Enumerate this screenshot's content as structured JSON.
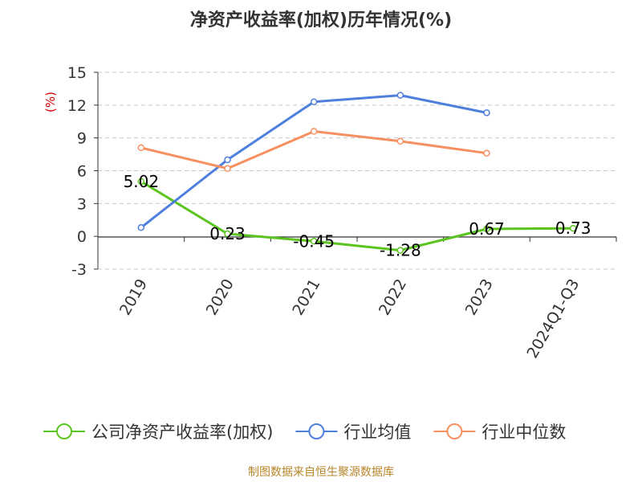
{
  "chart_data": {
    "type": "line",
    "title": "净资产收益率(加权)历年情况(%)",
    "ylabel": "(%)",
    "categories": [
      "2019",
      "2020",
      "2021",
      "2022",
      "2023",
      "2024Q1-Q3"
    ],
    "ylim": [
      -3,
      15
    ],
    "yticks": [
      -3,
      0,
      3,
      6,
      9,
      12,
      15
    ],
    "ytick_labels": [
      "-3",
      "0",
      "3",
      "6",
      "9",
      "12",
      "15"
    ],
    "grid": true,
    "legend_position": "bottom",
    "series": [
      {
        "name": "公司净资产收益率(加权)",
        "color": "#5cc41f",
        "values": [
          5.02,
          0.23,
          -0.45,
          -1.28,
          0.67,
          0.73
        ],
        "labels": [
          "5.02",
          "0.23",
          "-0.45",
          "-1.28",
          "0.67",
          "0.73"
        ]
      },
      {
        "name": "行业均值",
        "color": "#4e7fdd",
        "values": [
          0.8,
          7.0,
          12.3,
          12.9,
          11.3,
          null
        ]
      },
      {
        "name": "行业中位数",
        "color": "#f79061",
        "values": [
          8.1,
          6.2,
          9.6,
          8.7,
          7.6,
          null
        ]
      }
    ]
  },
  "colors": {
    "title": "#333333",
    "axis": "#333333",
    "ylabel": "#dd0000",
    "grid": "#c8c8c8",
    "source": "#b8862b"
  },
  "source_text": "制图数据来自恒生聚源数据库"
}
